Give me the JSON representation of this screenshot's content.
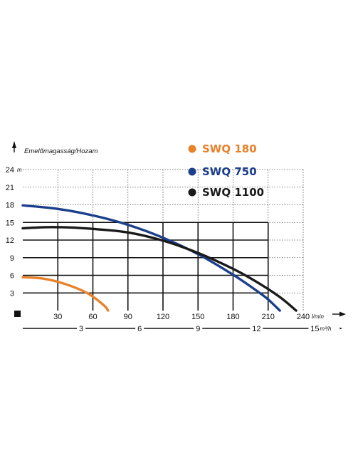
{
  "chart_data": {
    "type": "line",
    "ylabel": "Emelőmagasság/Hozam",
    "y_unit": "m",
    "x_unit": "l/min",
    "x2_unit": "m³/h",
    "xlim": [
      0,
      240
    ],
    "ylim": [
      0,
      24
    ],
    "x_ticks": [
      "30",
      "60",
      "90",
      "120",
      "150",
      "180",
      "210",
      "240"
    ],
    "y_ticks": [
      "3",
      "6",
      "9",
      "12",
      "15",
      "18",
      "21",
      "24"
    ],
    "x2_ticks": [
      "3",
      "6",
      "9",
      "12",
      "15"
    ],
    "grid": true,
    "legend_position": "top-right",
    "colors": {
      "SWQ 180": "#e8822a",
      "SWQ 750": "#1c3f8c",
      "SWQ 1100": "#1a1a1a"
    },
    "series": [
      {
        "name": "SWQ 180",
        "x": [
          0,
          15,
          30,
          45,
          55,
          62,
          67,
          71,
          73
        ],
        "y": [
          5.7,
          5.5,
          4.9,
          3.9,
          3.0,
          2.1,
          1.3,
          0.6,
          0
        ]
      },
      {
        "name": "SWQ 750",
        "x": [
          0,
          30,
          60,
          90,
          120,
          150,
          180,
          200,
          210,
          220
        ],
        "y": [
          17.9,
          17.3,
          16.2,
          14.6,
          12.4,
          9.6,
          6.1,
          3.4,
          1.9,
          0
        ]
      },
      {
        "name": "SWQ 1100",
        "x": [
          0,
          20,
          40,
          60,
          90,
          120,
          150,
          180,
          200,
          220,
          234
        ],
        "y": [
          14.0,
          14.2,
          14.15,
          13.9,
          13.3,
          11.9,
          9.8,
          7.1,
          4.9,
          2.3,
          0
        ]
      }
    ]
  }
}
